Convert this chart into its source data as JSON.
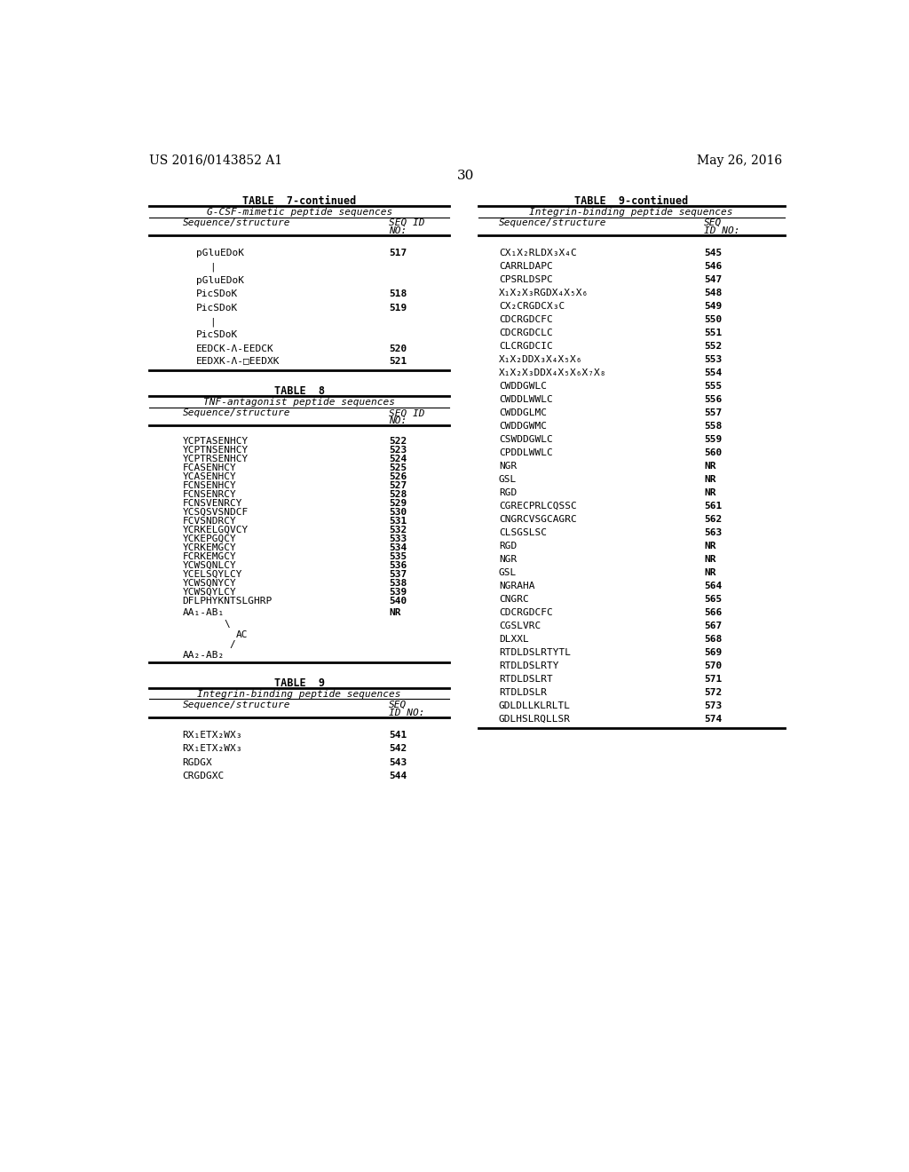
{
  "page_header_left": "US 2016/0143852 A1",
  "page_header_right": "May 26, 2016",
  "page_number": "30",
  "background_color": "#ffffff",
  "text_color": "#000000",
  "table7_title": "TABLE  7-continued",
  "table7_subtitle": "G-CSF-mimetic peptide sequences",
  "table8_title": "TABLE  8",
  "table8_subtitle": "TNF-antagonist peptide sequences",
  "table9_title": "TABLE  9",
  "table9_subtitle": "Integrin-binding peptide sequences",
  "table9cont_title": "TABLE  9-continued",
  "table9cont_subtitle": "Integrin-binding peptide sequences",
  "table8_simple_rows": [
    [
      "YCPTASENHCY",
      "522"
    ],
    [
      "YCPTNSENHCY",
      "523"
    ],
    [
      "YCPTRSENHCY",
      "524"
    ],
    [
      "FCASENHCY",
      "525"
    ],
    [
      "YCASENHCY",
      "526"
    ],
    [
      "FCNSENHCY",
      "527"
    ],
    [
      "FCNSENRCY",
      "528"
    ],
    [
      "FCNSVENRCY",
      "529"
    ],
    [
      "YCSQSVSNDCF",
      "530"
    ],
    [
      "FCVSNDRCY",
      "531"
    ],
    [
      "YCRKELGQVCY",
      "532"
    ],
    [
      "YCKEPGQCY",
      "533"
    ],
    [
      "YCRKEMGCY",
      "534"
    ],
    [
      "FCRKEMGCY",
      "535"
    ],
    [
      "YCWSQNLCY",
      "536"
    ],
    [
      "YCELSQYLCY",
      "537"
    ],
    [
      "YCWSQNYCY",
      "538"
    ],
    [
      "YCWSQYLCY",
      "539"
    ],
    [
      "DFLPHYKNTSLGHRP",
      "540"
    ]
  ],
  "table9cont_rows": [
    [
      "CX₁X₂RLDX₃X₄C",
      "545"
    ],
    [
      "CARRLDAPC",
      "546"
    ],
    [
      "CPSRLDSPC",
      "547"
    ],
    [
      "X₁X₂X₃RGDX₄X₅X₆",
      "548"
    ],
    [
      "CX₂CRGDCX₃C",
      "549"
    ],
    [
      "CDCRGDCFC",
      "550"
    ],
    [
      "CDCRGDCLC",
      "551"
    ],
    [
      "CLCRGDCIC",
      "552"
    ],
    [
      "X₁X₂DDX₃X₄X₅X₆",
      "553"
    ],
    [
      "X₁X₂X₃DDX₄X₅X₆X₇X₈",
      "554"
    ],
    [
      "CWDDGWLC",
      "555"
    ],
    [
      "CWDDLWWLC",
      "556"
    ],
    [
      "CWDDGLMC",
      "557"
    ],
    [
      "CWDDGWMC",
      "558"
    ],
    [
      "CSWDDGWLC",
      "559"
    ],
    [
      "CPDDLWWLC",
      "560"
    ],
    [
      "NGR",
      "NR"
    ],
    [
      "GSL",
      "NR"
    ],
    [
      "RGD",
      "NR"
    ],
    [
      "CGRECPRLCQSSC",
      "561"
    ],
    [
      "CNGRCVSGCAGRC",
      "562"
    ],
    [
      "CLSGSLSC",
      "563"
    ],
    [
      "RGD",
      "NR"
    ],
    [
      "NGR",
      "NR"
    ],
    [
      "GSL",
      "NR"
    ],
    [
      "NGRAHA",
      "564"
    ],
    [
      "CNGRC",
      "565"
    ],
    [
      "CDCRGDCFC",
      "566"
    ],
    [
      "CGSLVRC",
      "567"
    ],
    [
      "DLXXL",
      "568"
    ],
    [
      "RTDLDSLRTYTL",
      "569"
    ],
    [
      "RTDLDSLRTY",
      "570"
    ],
    [
      "RTDLDSLRT",
      "571"
    ],
    [
      "RTDLDSLR",
      "572"
    ],
    [
      "GDLDLLKLRLTL",
      "573"
    ],
    [
      "GDLHSLRQLLSR",
      "574"
    ]
  ],
  "table9_rows": [
    [
      "RX₁ETX₂WX₃",
      "541"
    ],
    [
      "RX₁ETX₂WX₃",
      "542"
    ],
    [
      "RGDGX",
      "543"
    ],
    [
      "CRGDGXC",
      "544"
    ]
  ]
}
